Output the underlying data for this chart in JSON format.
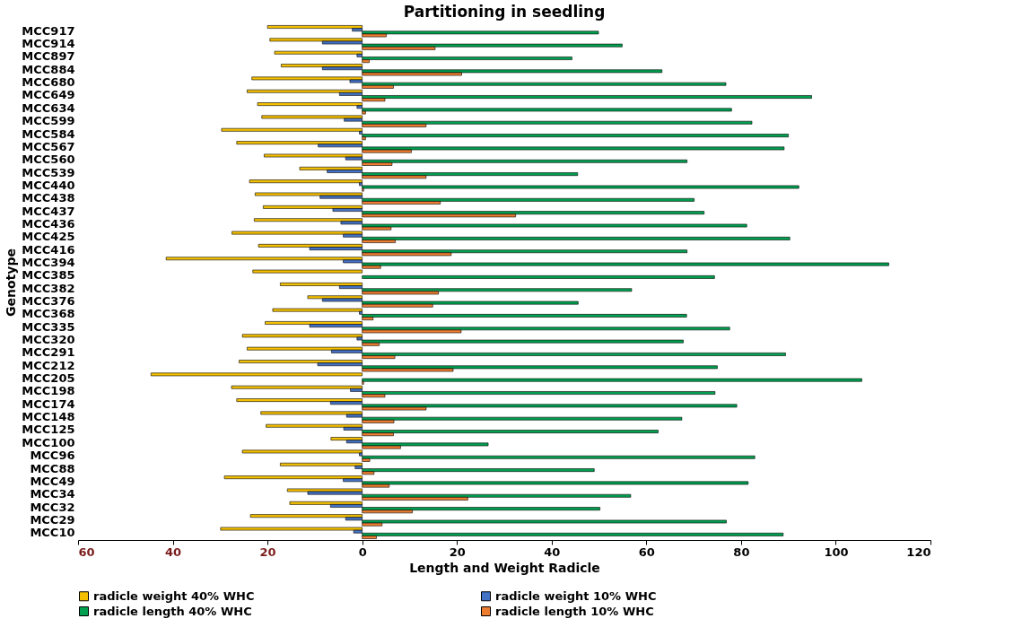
{
  "chart_data": {
    "type": "bar",
    "orientation": "horizontal",
    "title": "Partitioning in seedling",
    "xlabel": "Length and Weight Radicle",
    "ylabel": "Genotype",
    "categories": [
      "MCC917",
      "MCC914",
      "MCC897",
      "MCC884",
      "MCC680",
      "MCC649",
      "MCC634",
      "MCC599",
      "MCC584",
      "MCC567",
      "MCC560",
      "MCC539",
      "MCC440",
      "MCC438",
      "MCC437",
      "MCC436",
      "MCC425",
      "MCC416",
      "MCC394",
      "MCC385",
      "MCC382",
      "MCC376",
      "MCC368",
      "MCC335",
      "MCC320",
      "MCC291",
      "MCC212",
      "MCC205",
      "MCC198",
      "MCC174",
      "MCC148",
      "MCC125",
      "MCC100",
      "MCC96",
      "MCC88",
      "MCC49",
      "MCC34",
      "MCC32",
      "MCC29",
      "MCC10"
    ],
    "series": [
      {
        "name": "radicle weight 40% WHC",
        "color": "#f5c000",
        "values": [
          -20.0,
          -19.5,
          -18.5,
          -17.1,
          -23.3,
          -24.3,
          -22.1,
          -21.2,
          -29.7,
          -26.5,
          -20.7,
          -13.2,
          -23.8,
          -22.6,
          -20.9,
          -22.8,
          -27.5,
          -21.9,
          -41.4,
          -23.1,
          -17.3,
          -11.5,
          -18.9,
          -20.5,
          -25.3,
          -24.3,
          -26.0,
          -44.6,
          -27.6,
          -26.5,
          -21.4,
          -20.3,
          -6.6,
          -25.3,
          -17.3,
          -29.1,
          -15.8,
          -15.3,
          -23.6,
          -29.9
        ]
      },
      {
        "name": "radicle weight 10% WHC",
        "color": "#4472c4",
        "values": [
          -2.1,
          -8.4,
          -1.1,
          -8.4,
          -2.6,
          -4.8,
          -1.1,
          -3.8,
          -0.6,
          -9.3,
          -3.5,
          -7.4,
          -0.6,
          -8.9,
          -6.2,
          -4.5,
          -4.0,
          -11.1,
          -4.0,
          null,
          -4.8,
          -8.4,
          -0.6,
          -11.1,
          -1.1,
          -6.5,
          -9.4,
          null,
          -2.5,
          -6.7,
          -3.3,
          -3.9,
          -3.3,
          -0.6,
          -1.5,
          -4.0,
          -11.5,
          -6.7,
          -3.5,
          -1.8
        ]
      },
      {
        "name": "radicle length 40% WHC",
        "color": "#00a050",
        "values": [
          49.9,
          54.9,
          44.3,
          63.3,
          76.8,
          94.9,
          78.0,
          82.3,
          90.0,
          89.1,
          68.6,
          45.5,
          92.2,
          70.1,
          72.2,
          81.2,
          90.3,
          68.6,
          111.2,
          74.4,
          56.9,
          45.6,
          68.5,
          77.6,
          67.8,
          89.4,
          75.0,
          105.5,
          74.5,
          79.1,
          67.5,
          62.5,
          26.6,
          82.9,
          49.0,
          81.5,
          56.7,
          50.2,
          76.9,
          88.9
        ]
      },
      {
        "name": "radicle length 10% WHC",
        "color": "#ed7d31",
        "values": [
          5.1,
          15.4,
          1.5,
          21.0,
          6.6,
          4.8,
          0.7,
          13.5,
          0.7,
          10.4,
          6.3,
          13.5,
          0.3,
          16.5,
          32.4,
          6.1,
          7.0,
          18.8,
          3.9,
          null,
          16.1,
          14.9,
          2.3,
          20.9,
          3.6,
          6.9,
          19.2,
          0.3,
          4.8,
          13.5,
          6.7,
          6.6,
          8.1,
          1.6,
          2.5,
          5.7,
          22.3,
          10.6,
          4.2,
          3.0
        ]
      }
    ],
    "xlim": [
      -60,
      120
    ],
    "xticks": [
      {
        "value": -60,
        "label": "60"
      },
      {
        "value": -40,
        "label": "40"
      },
      {
        "value": -20,
        "label": "20"
      },
      0,
      20,
      40,
      60,
      80,
      100,
      120
    ],
    "grid": false,
    "legend": "bottom"
  }
}
